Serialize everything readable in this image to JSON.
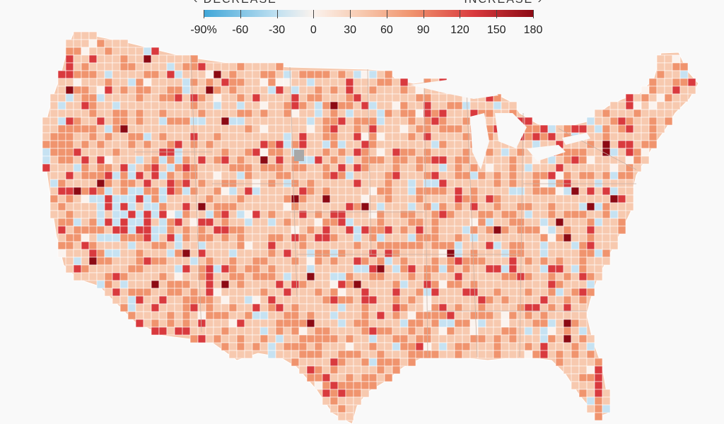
{
  "legend": {
    "left_caption": "‹ DECREASE",
    "right_caption": "INCREASE ›",
    "labels": [
      "-90%",
      "-60",
      "-30",
      "0",
      "30",
      "60",
      "90",
      "120",
      "150",
      "180"
    ]
  },
  "colors": {
    "strong_decrease": "#3fa6d8",
    "light_decrease": "#c6e2f2",
    "neutral": "#fbf3ee",
    "light_increase": "#f7c9af",
    "mid_increase": "#f0946e",
    "strong_increase": "#d93a3e",
    "max_increase": "#8c0a14",
    "no_data": "#a8a8a8",
    "border": "#ffffff"
  },
  "map": {
    "scale_min_percent": -90,
    "scale_max_percent": 180
  }
}
